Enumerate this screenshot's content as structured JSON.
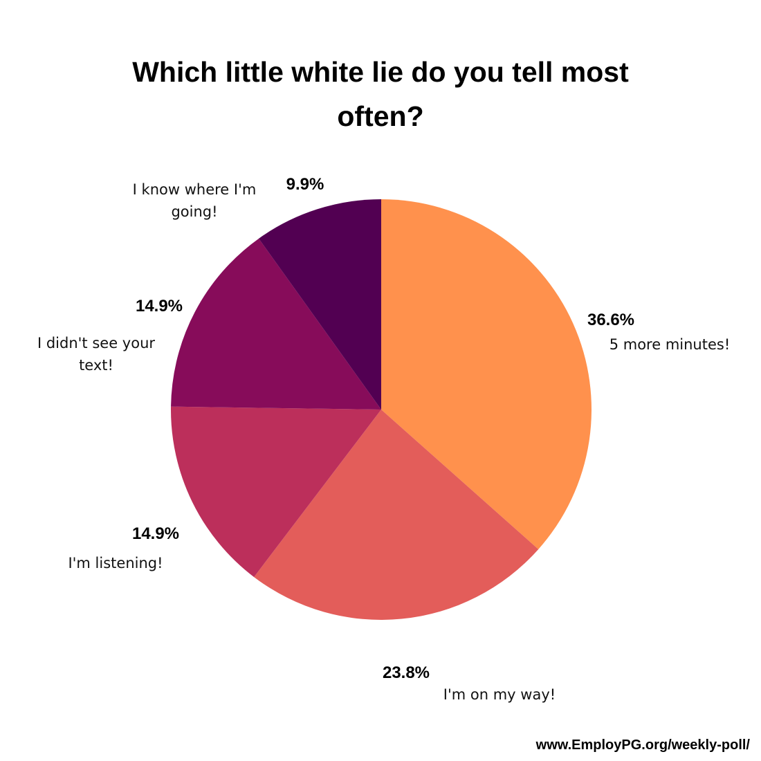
{
  "chart_data": {
    "type": "pie",
    "title": "Which little white lie do you tell most often?",
    "categories": [
      "5 more minutes!",
      "I'm on my way!",
      "I'm listening!",
      "I didn't see your text!",
      "I know where I'm going!"
    ],
    "values": [
      36.6,
      23.8,
      14.9,
      14.9,
      9.9
    ],
    "value_labels": [
      "36.6%",
      "23.8%",
      "14.9%",
      "14.9%",
      "9.9%"
    ],
    "colors": [
      "#ff914d",
      "#e35d5a",
      "#bc2f5b",
      "#870c5a",
      "#520052"
    ],
    "source": "www.EmployPG.org/weekly-poll/"
  }
}
